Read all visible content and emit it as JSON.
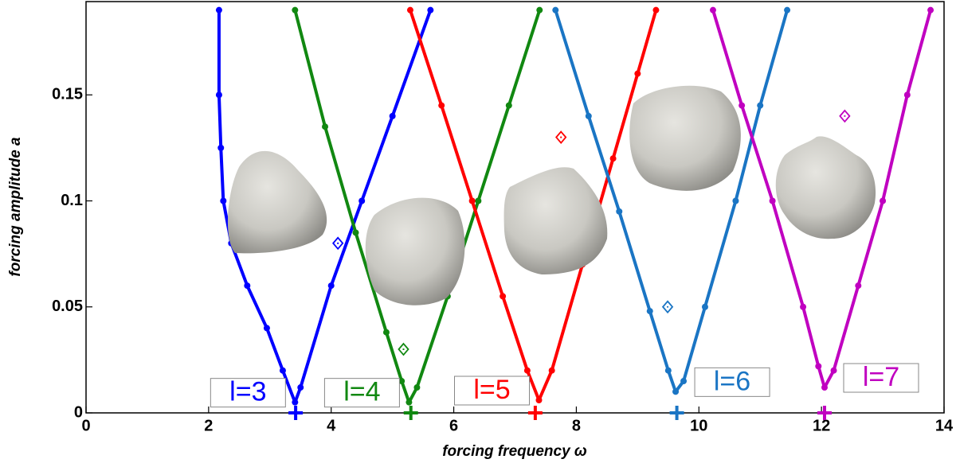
{
  "chart_data": {
    "type": "line",
    "xlabel": "forcing frequency ω",
    "ylabel": "forcing amplitude a",
    "xlim": [
      0,
      14
    ],
    "ylim": [
      0,
      0.194
    ],
    "xticks": [
      0,
      2,
      4,
      6,
      8,
      10,
      12,
      14
    ],
    "yticks": [
      0,
      0.05,
      0.1,
      0.15
    ],
    "series": [
      {
        "name": "l=3",
        "color": "#0000ff",
        "x": [
          2.17,
          2.17,
          2.2,
          2.24,
          2.37,
          2.63,
          2.95,
          3.21,
          3.41,
          3.5,
          4.0,
          4.5,
          5.0,
          5.62
        ],
        "values": [
          0.19,
          0.15,
          0.125,
          0.1,
          0.08,
          0.06,
          0.04,
          0.02,
          0.005,
          0.012,
          0.06,
          0.1,
          0.14,
          0.19
        ],
        "marker_x": 3.42,
        "marker_y": 0,
        "point_x": 4.11,
        "point_y": 0.08
      },
      {
        "name": "l=4",
        "color": "#118811",
        "x": [
          3.41,
          3.9,
          4.4,
          4.9,
          5.15,
          5.27,
          5.4,
          5.9,
          6.4,
          6.9,
          7.4
        ],
        "values": [
          0.19,
          0.135,
          0.085,
          0.038,
          0.015,
          0.005,
          0.012,
          0.055,
          0.1,
          0.145,
          0.19
        ],
        "marker_x": 5.3,
        "marker_y": 0,
        "point_x": 5.18,
        "point_y": 0.03
      },
      {
        "name": "l=5",
        "color": "#ff0000",
        "x": [
          5.29,
          5.8,
          6.3,
          6.8,
          7.2,
          7.39,
          7.6,
          8.1,
          8.6,
          9.0,
          9.3
        ],
        "values": [
          0.19,
          0.145,
          0.1,
          0.055,
          0.02,
          0.006,
          0.02,
          0.07,
          0.12,
          0.16,
          0.19
        ],
        "marker_x": 7.33,
        "marker_y": 0,
        "point_x": 7.75,
        "point_y": 0.13
      },
      {
        "name": "l=6",
        "color": "#1a75c4",
        "x": [
          7.66,
          8.2,
          8.7,
          9.2,
          9.5,
          9.62,
          9.75,
          10.1,
          10.6,
          11.0,
          11.44
        ],
        "values": [
          0.19,
          0.14,
          0.095,
          0.048,
          0.02,
          0.01,
          0.015,
          0.05,
          0.1,
          0.145,
          0.19
        ],
        "marker_x": 9.64,
        "marker_y": 0,
        "point_x": 9.49,
        "point_y": 0.05
      },
      {
        "name": "l=7",
        "color": "#c000c0",
        "x": [
          10.23,
          10.7,
          11.2,
          11.7,
          11.95,
          12.05,
          12.2,
          12.6,
          13.0,
          13.4,
          13.78
        ],
        "values": [
          0.19,
          0.145,
          0.1,
          0.05,
          0.022,
          0.012,
          0.02,
          0.06,
          0.1,
          0.15,
          0.19
        ],
        "marker_x": 12.05,
        "marker_y": 0,
        "point_x": 12.38,
        "point_y": 0.14
      }
    ]
  }
}
